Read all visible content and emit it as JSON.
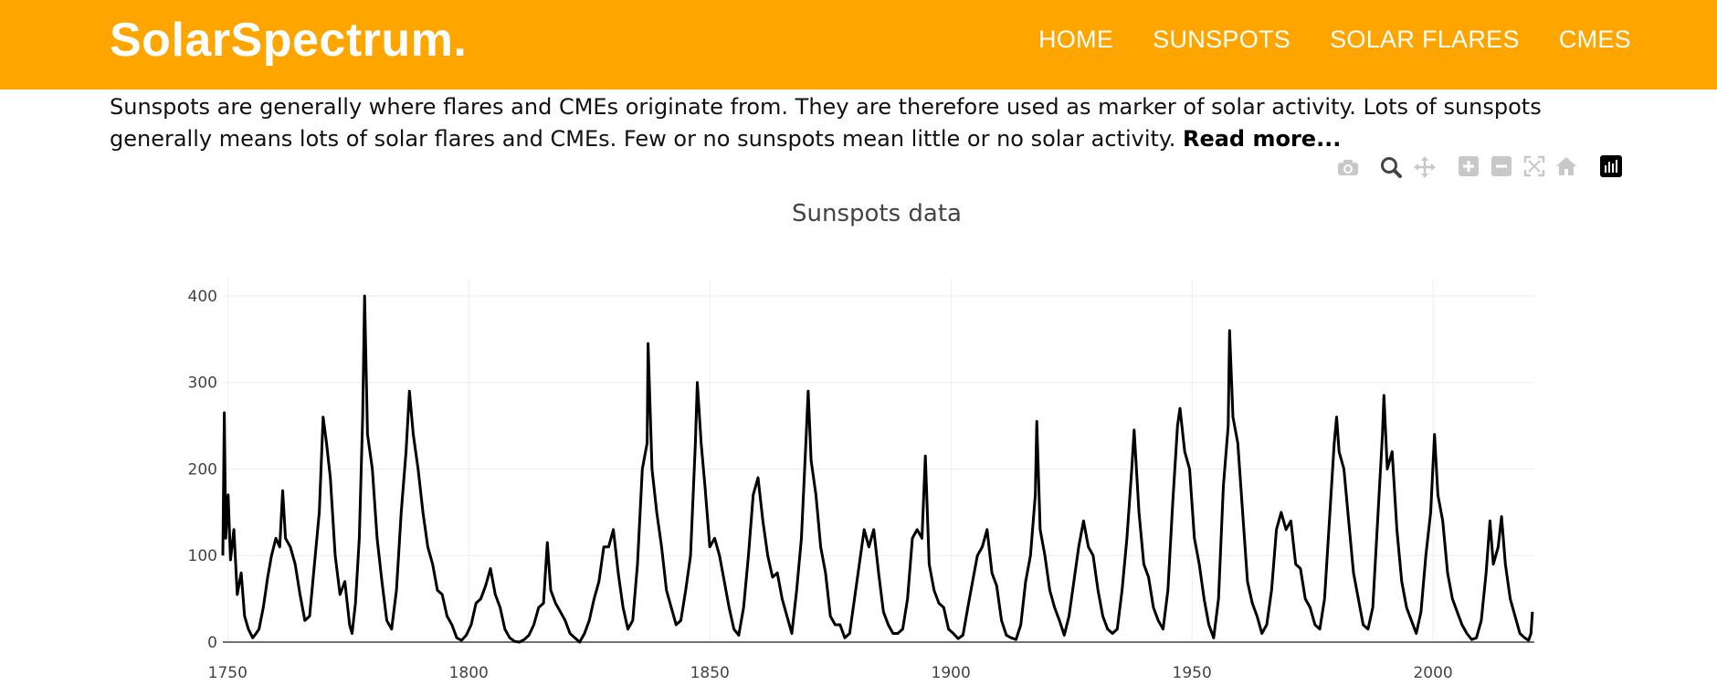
{
  "nav": {
    "brand": "SolarSpectrum.",
    "links": [
      "HOME",
      "SUNSPOTS",
      "SOLAR FLARES",
      "CMES"
    ]
  },
  "intro": {
    "text": "Sunspots are generally where flares and CMEs originate from. They are therefore used as marker of solar activity. Lots of sunspots generally means lots of solar flares and CMEs. Few or no sunspots mean little or no solar activity.",
    "read_more": "Read more..."
  },
  "modebar": {
    "icons": [
      "camera-icon",
      "zoom-icon",
      "pan-icon",
      "zoom-in-icon",
      "zoom-out-icon",
      "autoscale-icon",
      "reset-axes-icon",
      "plotly-logo-icon"
    ]
  },
  "colors": {
    "header": "#ffa500",
    "line": "#000000"
  },
  "chart_data": {
    "type": "line",
    "title": "Sunspots data",
    "xlabel": "",
    "ylabel": "",
    "xlim": [
      1749,
      2021
    ],
    "ylim": [
      0,
      420
    ],
    "x_ticks": [
      1750,
      1800,
      1850,
      1900,
      1950,
      2000
    ],
    "y_ticks": [
      0,
      100,
      200,
      300,
      400
    ],
    "grid": true,
    "series": [
      {
        "values": [
          [
            1749.0,
            100
          ],
          [
            1749.3,
            265
          ],
          [
            1749.6,
            120
          ],
          [
            1750.1,
            170
          ],
          [
            1750.6,
            95
          ],
          [
            1751.3,
            130
          ],
          [
            1752.0,
            55
          ],
          [
            1752.8,
            80
          ],
          [
            1753.5,
            30
          ],
          [
            1754.3,
            15
          ],
          [
            1755.2,
            5
          ],
          [
            1755.9,
            10
          ],
          [
            1756.5,
            15
          ],
          [
            1757.4,
            40
          ],
          [
            1758.3,
            75
          ],
          [
            1759.1,
            100
          ],
          [
            1760.0,
            120
          ],
          [
            1760.8,
            110
          ],
          [
            1761.4,
            175
          ],
          [
            1762.0,
            120
          ],
          [
            1763.0,
            110
          ],
          [
            1764.0,
            90
          ],
          [
            1765.0,
            55
          ],
          [
            1766.0,
            25
          ],
          [
            1767.0,
            30
          ],
          [
            1768.0,
            90
          ],
          [
            1769.0,
            150
          ],
          [
            1769.8,
            260
          ],
          [
            1770.5,
            230
          ],
          [
            1771.3,
            190
          ],
          [
            1772.3,
            100
          ],
          [
            1773.3,
            55
          ],
          [
            1774.3,
            70
          ],
          [
            1775.3,
            20
          ],
          [
            1775.8,
            10
          ],
          [
            1776.5,
            45
          ],
          [
            1777.3,
            120
          ],
          [
            1778.0,
            260
          ],
          [
            1778.4,
            400
          ],
          [
            1779.0,
            240
          ],
          [
            1780.0,
            200
          ],
          [
            1781.0,
            120
          ],
          [
            1782.0,
            70
          ],
          [
            1783.0,
            25
          ],
          [
            1784.0,
            15
          ],
          [
            1785.0,
            60
          ],
          [
            1786.0,
            150
          ],
          [
            1787.0,
            220
          ],
          [
            1787.7,
            290
          ],
          [
            1788.5,
            240
          ],
          [
            1789.5,
            200
          ],
          [
            1790.5,
            150
          ],
          [
            1791.5,
            110
          ],
          [
            1792.5,
            90
          ],
          [
            1793.5,
            60
          ],
          [
            1794.5,
            55
          ],
          [
            1795.5,
            30
          ],
          [
            1796.5,
            20
          ],
          [
            1797.5,
            5
          ],
          [
            1798.5,
            2
          ],
          [
            1799.5,
            8
          ],
          [
            1800.5,
            20
          ],
          [
            1801.5,
            45
          ],
          [
            1802.5,
            50
          ],
          [
            1803.5,
            65
          ],
          [
            1804.5,
            85
          ],
          [
            1805.5,
            55
          ],
          [
            1806.5,
            40
          ],
          [
            1807.5,
            15
          ],
          [
            1808.5,
            5
          ],
          [
            1809.5,
            1
          ],
          [
            1810.5,
            0
          ],
          [
            1811.5,
            3
          ],
          [
            1812.5,
            8
          ],
          [
            1813.5,
            20
          ],
          [
            1814.5,
            40
          ],
          [
            1815.5,
            45
          ],
          [
            1816.3,
            115
          ],
          [
            1817.0,
            60
          ],
          [
            1818.0,
            45
          ],
          [
            1819.0,
            35
          ],
          [
            1820.0,
            25
          ],
          [
            1821.0,
            10
          ],
          [
            1822.0,
            5
          ],
          [
            1823.0,
            0
          ],
          [
            1824.0,
            10
          ],
          [
            1825.0,
            25
          ],
          [
            1826.0,
            50
          ],
          [
            1827.0,
            70
          ],
          [
            1828.0,
            110
          ],
          [
            1829.0,
            110
          ],
          [
            1830.0,
            130
          ],
          [
            1831.0,
            80
          ],
          [
            1832.0,
            40
          ],
          [
            1833.0,
            15
          ],
          [
            1834.0,
            25
          ],
          [
            1835.0,
            90
          ],
          [
            1836.0,
            200
          ],
          [
            1837.0,
            230
          ],
          [
            1837.2,
            345
          ],
          [
            1838.0,
            200
          ],
          [
            1839.0,
            150
          ],
          [
            1840.0,
            110
          ],
          [
            1841.0,
            60
          ],
          [
            1842.0,
            40
          ],
          [
            1843.0,
            20
          ],
          [
            1844.0,
            25
          ],
          [
            1845.0,
            60
          ],
          [
            1846.0,
            100
          ],
          [
            1847.0,
            230
          ],
          [
            1847.4,
            300
          ],
          [
            1848.2,
            230
          ],
          [
            1849.0,
            180
          ],
          [
            1850.0,
            110
          ],
          [
            1851.0,
            120
          ],
          [
            1852.0,
            100
          ],
          [
            1853.0,
            70
          ],
          [
            1854.0,
            40
          ],
          [
            1855.0,
            15
          ],
          [
            1856.0,
            8
          ],
          [
            1857.0,
            40
          ],
          [
            1858.0,
            100
          ],
          [
            1859.0,
            170
          ],
          [
            1860.0,
            190
          ],
          [
            1861.0,
            140
          ],
          [
            1862.0,
            100
          ],
          [
            1863.0,
            75
          ],
          [
            1864.0,
            80
          ],
          [
            1865.0,
            50
          ],
          [
            1866.0,
            30
          ],
          [
            1867.0,
            10
          ],
          [
            1868.0,
            60
          ],
          [
            1869.0,
            120
          ],
          [
            1870.0,
            240
          ],
          [
            1870.4,
            290
          ],
          [
            1871.0,
            210
          ],
          [
            1872.0,
            170
          ],
          [
            1873.0,
            110
          ],
          [
            1874.0,
            80
          ],
          [
            1875.0,
            30
          ],
          [
            1876.0,
            20
          ],
          [
            1877.0,
            20
          ],
          [
            1878.0,
            5
          ],
          [
            1879.0,
            10
          ],
          [
            1880.0,
            50
          ],
          [
            1881.0,
            90
          ],
          [
            1882.0,
            130
          ],
          [
            1883.0,
            110
          ],
          [
            1884.0,
            130
          ],
          [
            1885.0,
            80
          ],
          [
            1886.0,
            35
          ],
          [
            1887.0,
            20
          ],
          [
            1888.0,
            10
          ],
          [
            1889.0,
            10
          ],
          [
            1890.0,
            15
          ],
          [
            1891.0,
            50
          ],
          [
            1892.0,
            120
          ],
          [
            1893.0,
            130
          ],
          [
            1894.0,
            120
          ],
          [
            1894.7,
            215
          ],
          [
            1895.5,
            90
          ],
          [
            1896.5,
            60
          ],
          [
            1897.5,
            45
          ],
          [
            1898.5,
            40
          ],
          [
            1899.5,
            15
          ],
          [
            1900.5,
            10
          ],
          [
            1901.5,
            4
          ],
          [
            1902.5,
            8
          ],
          [
            1903.5,
            40
          ],
          [
            1904.5,
            70
          ],
          [
            1905.5,
            100
          ],
          [
            1906.5,
            110
          ],
          [
            1907.5,
            130
          ],
          [
            1908.5,
            80
          ],
          [
            1909.5,
            65
          ],
          [
            1910.5,
            25
          ],
          [
            1911.5,
            8
          ],
          [
            1912.5,
            5
          ],
          [
            1913.5,
            3
          ],
          [
            1914.5,
            20
          ],
          [
            1915.5,
            70
          ],
          [
            1916.5,
            100
          ],
          [
            1917.5,
            170
          ],
          [
            1917.8,
            255
          ],
          [
            1918.5,
            130
          ],
          [
            1919.5,
            100
          ],
          [
            1920.5,
            60
          ],
          [
            1921.5,
            40
          ],
          [
            1922.5,
            25
          ],
          [
            1923.5,
            8
          ],
          [
            1924.5,
            30
          ],
          [
            1925.5,
            70
          ],
          [
            1926.5,
            110
          ],
          [
            1927.5,
            140
          ],
          [
            1928.5,
            110
          ],
          [
            1929.5,
            100
          ],
          [
            1930.5,
            60
          ],
          [
            1931.5,
            30
          ],
          [
            1932.5,
            15
          ],
          [
            1933.5,
            10
          ],
          [
            1934.5,
            15
          ],
          [
            1935.5,
            60
          ],
          [
            1936.5,
            120
          ],
          [
            1937.5,
            200
          ],
          [
            1938.0,
            245
          ],
          [
            1939.0,
            150
          ],
          [
            1940.0,
            90
          ],
          [
            1941.0,
            75
          ],
          [
            1942.0,
            40
          ],
          [
            1943.0,
            25
          ],
          [
            1944.0,
            15
          ],
          [
            1945.0,
            60
          ],
          [
            1946.0,
            160
          ],
          [
            1947.0,
            250
          ],
          [
            1947.5,
            270
          ],
          [
            1948.5,
            220
          ],
          [
            1949.5,
            200
          ],
          [
            1950.5,
            120
          ],
          [
            1951.5,
            90
          ],
          [
            1952.5,
            50
          ],
          [
            1953.5,
            20
          ],
          [
            1954.5,
            5
          ],
          [
            1955.5,
            50
          ],
          [
            1956.5,
            180
          ],
          [
            1957.5,
            250
          ],
          [
            1957.8,
            360
          ],
          [
            1958.5,
            260
          ],
          [
            1959.5,
            230
          ],
          [
            1960.5,
            150
          ],
          [
            1961.5,
            70
          ],
          [
            1962.5,
            45
          ],
          [
            1963.5,
            30
          ],
          [
            1964.5,
            10
          ],
          [
            1965.5,
            20
          ],
          [
            1966.5,
            60
          ],
          [
            1967.5,
            130
          ],
          [
            1968.5,
            150
          ],
          [
            1969.5,
            130
          ],
          [
            1970.5,
            140
          ],
          [
            1971.5,
            90
          ],
          [
            1972.5,
            85
          ],
          [
            1973.5,
            50
          ],
          [
            1974.5,
            40
          ],
          [
            1975.5,
            20
          ],
          [
            1976.5,
            15
          ],
          [
            1977.5,
            50
          ],
          [
            1978.5,
            140
          ],
          [
            1979.5,
            230
          ],
          [
            1980.0,
            260
          ],
          [
            1980.5,
            220
          ],
          [
            1981.5,
            200
          ],
          [
            1982.5,
            140
          ],
          [
            1983.5,
            80
          ],
          [
            1984.5,
            50
          ],
          [
            1985.5,
            20
          ],
          [
            1986.5,
            15
          ],
          [
            1987.5,
            40
          ],
          [
            1988.5,
            140
          ],
          [
            1989.5,
            240
          ],
          [
            1989.8,
            285
          ],
          [
            1990.5,
            200
          ],
          [
            1991.5,
            220
          ],
          [
            1992.5,
            130
          ],
          [
            1993.5,
            70
          ],
          [
            1994.5,
            40
          ],
          [
            1995.5,
            25
          ],
          [
            1996.5,
            10
          ],
          [
            1997.5,
            35
          ],
          [
            1998.5,
            100
          ],
          [
            1999.5,
            150
          ],
          [
            2000.3,
            240
          ],
          [
            2001.0,
            170
          ],
          [
            2002.0,
            140
          ],
          [
            2003.0,
            80
          ],
          [
            2004.0,
            50
          ],
          [
            2005.0,
            35
          ],
          [
            2006.0,
            20
          ],
          [
            2007.0,
            10
          ],
          [
            2008.0,
            3
          ],
          [
            2009.0,
            5
          ],
          [
            2010.0,
            25
          ],
          [
            2011.0,
            80
          ],
          [
            2011.8,
            140
          ],
          [
            2012.5,
            90
          ],
          [
            2013.5,
            110
          ],
          [
            2014.2,
            145
          ],
          [
            2015.0,
            90
          ],
          [
            2016.0,
            50
          ],
          [
            2017.0,
            30
          ],
          [
            2018.0,
            10
          ],
          [
            2019.0,
            5
          ],
          [
            2019.8,
            2
          ],
          [
            2020.3,
            10
          ],
          [
            2020.6,
            35
          ]
        ]
      }
    ]
  }
}
